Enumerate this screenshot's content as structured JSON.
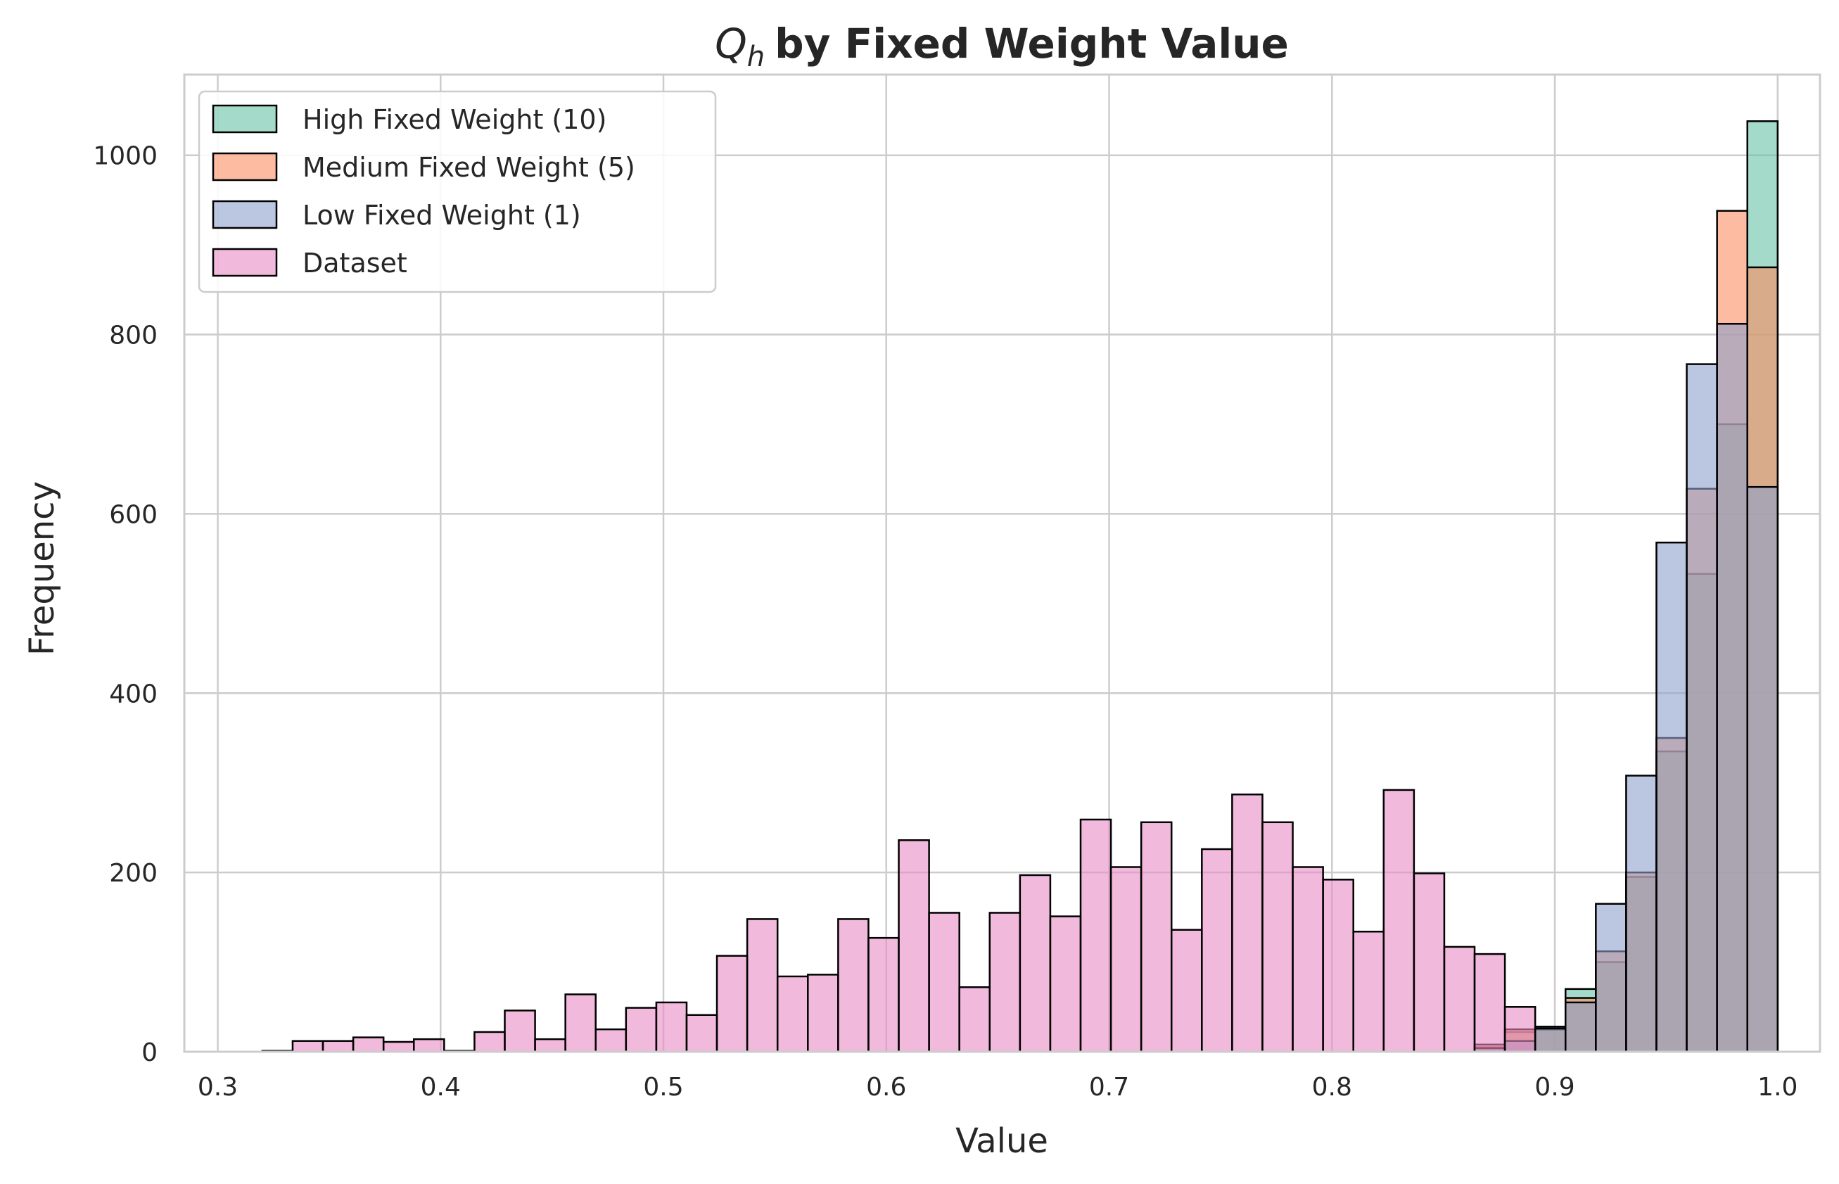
{
  "chart_data": {
    "type": "bar",
    "title": {
      "symbol": "Q",
      "subscript": "h",
      "text": "by Fixed Weight Value"
    },
    "xlabel": "Value",
    "ylabel": "Frequency",
    "xlim": [
      0.285,
      1.019
    ],
    "ylim": [
      0,
      1090
    ],
    "xticks": [
      0.3,
      0.4,
      0.5,
      0.6,
      0.7,
      0.8,
      0.9,
      1.0
    ],
    "xtick_labels": [
      "0.3",
      "0.4",
      "0.5",
      "0.6",
      "0.7",
      "0.8",
      "0.9",
      "1.0"
    ],
    "yticks": [
      0,
      200,
      400,
      600,
      800,
      1000
    ],
    "ytick_labels": [
      "0",
      "200",
      "400",
      "600",
      "800",
      "1000"
    ],
    "grid": true,
    "legend_position": "top-left",
    "bin_range": [
      0.32,
      1.0
    ],
    "bin_count": 50,
    "series": [
      {
        "name": "High Fixed Weight (10)",
        "color": "#66c2a5",
        "values": [
          0,
          0,
          0,
          0,
          0,
          0,
          0,
          0,
          0,
          0,
          0,
          0,
          0,
          0,
          0,
          0,
          0,
          0,
          0,
          0,
          0,
          0,
          0,
          0,
          0,
          0,
          0,
          0,
          0,
          0,
          0,
          0,
          0,
          0,
          0,
          0,
          0,
          0,
          0,
          0,
          5,
          22,
          28,
          70,
          100,
          195,
          335,
          533,
          700,
          1038
        ]
      },
      {
        "name": "Medium Fixed Weight (5)",
        "color": "#fc8d62",
        "values": [
          0,
          0,
          0,
          0,
          0,
          0,
          0,
          0,
          0,
          0,
          0,
          0,
          0,
          0,
          0,
          0,
          0,
          0,
          0,
          0,
          0,
          0,
          0,
          0,
          0,
          0,
          0,
          0,
          0,
          0,
          0,
          0,
          0,
          0,
          0,
          0,
          0,
          0,
          0,
          0,
          8,
          25,
          25,
          60,
          112,
          200,
          350,
          628,
          938,
          875
        ]
      },
      {
        "name": "Low Fixed Weight (1)",
        "color": "#8da0cb",
        "values": [
          0,
          0,
          0,
          0,
          0,
          0,
          0,
          0,
          0,
          0,
          0,
          0,
          0,
          0,
          0,
          0,
          0,
          0,
          0,
          0,
          0,
          0,
          0,
          0,
          0,
          0,
          0,
          0,
          0,
          0,
          0,
          0,
          0,
          0,
          0,
          0,
          0,
          0,
          0,
          0,
          4,
          12,
          26,
          55,
          165,
          308,
          568,
          767,
          812,
          630
        ]
      },
      {
        "name": "Dataset",
        "color": "#e78ac3",
        "values": [
          1,
          12,
          12,
          16,
          11,
          14,
          1,
          22,
          46,
          14,
          64,
          25,
          49,
          55,
          41,
          107,
          148,
          84,
          86,
          148,
          127,
          236,
          155,
          72,
          155,
          197,
          151,
          259,
          206,
          256,
          136,
          226,
          287,
          256,
          206,
          192,
          134,
          292,
          199,
          117,
          109,
          50,
          0,
          0,
          0,
          0,
          0,
          0,
          0,
          0
        ]
      }
    ]
  }
}
